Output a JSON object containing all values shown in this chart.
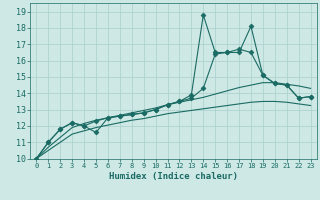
{
  "xlabel": "Humidex (Indice chaleur)",
  "ylabel": "",
  "xlim": [
    -0.5,
    23.5
  ],
  "ylim": [
    10,
    19.5
  ],
  "xticks": [
    0,
    1,
    2,
    3,
    4,
    5,
    6,
    7,
    8,
    9,
    10,
    11,
    12,
    13,
    14,
    15,
    16,
    17,
    18,
    19,
    20,
    21,
    22,
    23
  ],
  "yticks": [
    10,
    11,
    12,
    13,
    14,
    15,
    16,
    17,
    18,
    19
  ],
  "bg_color": "#cde8e5",
  "grid_color": "#aacfcc",
  "line_color": "#1a6b63",
  "marker": "D",
  "markersize": 2.5,
  "linewidth": 0.8,
  "line1_x": [
    0,
    1,
    2,
    3,
    4,
    5,
    6,
    7,
    8,
    9,
    10,
    11,
    12,
    13,
    14,
    15,
    16,
    17,
    18,
    19,
    20,
    21,
    22,
    23
  ],
  "line1_y": [
    10,
    11,
    11.8,
    12.2,
    12.0,
    11.6,
    12.5,
    12.6,
    12.7,
    12.8,
    13.0,
    13.3,
    13.5,
    13.9,
    18.8,
    16.5,
    16.5,
    16.5,
    18.1,
    15.1,
    14.6,
    14.5,
    13.7,
    13.8
  ],
  "line2_x": [
    0,
    1,
    2,
    3,
    4,
    5,
    6,
    7,
    8,
    9,
    10,
    11,
    12,
    13,
    14,
    15,
    16,
    17,
    18,
    19,
    20,
    21,
    22,
    23
  ],
  "line2_y": [
    10,
    11,
    11.8,
    12.2,
    12.0,
    12.3,
    12.5,
    12.6,
    12.7,
    12.8,
    13.0,
    13.3,
    13.5,
    13.7,
    14.3,
    16.4,
    16.5,
    16.7,
    16.5,
    15.1,
    14.6,
    14.5,
    13.7,
    13.8
  ],
  "smooth1_x": [
    0,
    1,
    2,
    3,
    4,
    5,
    6,
    7,
    8,
    9,
    10,
    11,
    12,
    13,
    14,
    15,
    16,
    17,
    18,
    19,
    20,
    21,
    22,
    23
  ],
  "smooth1_y": [
    10,
    10.7,
    11.3,
    11.9,
    12.15,
    12.35,
    12.5,
    12.65,
    12.8,
    12.95,
    13.1,
    13.3,
    13.45,
    13.6,
    13.75,
    13.95,
    14.15,
    14.35,
    14.5,
    14.65,
    14.65,
    14.55,
    14.45,
    14.3
  ],
  "smooth2_x": [
    0,
    1,
    2,
    3,
    4,
    5,
    6,
    7,
    8,
    9,
    10,
    11,
    12,
    13,
    14,
    15,
    16,
    17,
    18,
    19,
    20,
    21,
    22,
    23
  ],
  "smooth2_y": [
    10,
    10.5,
    11.0,
    11.5,
    11.7,
    11.9,
    12.05,
    12.2,
    12.35,
    12.45,
    12.6,
    12.75,
    12.85,
    12.95,
    13.05,
    13.15,
    13.25,
    13.35,
    13.45,
    13.5,
    13.5,
    13.45,
    13.35,
    13.25
  ]
}
